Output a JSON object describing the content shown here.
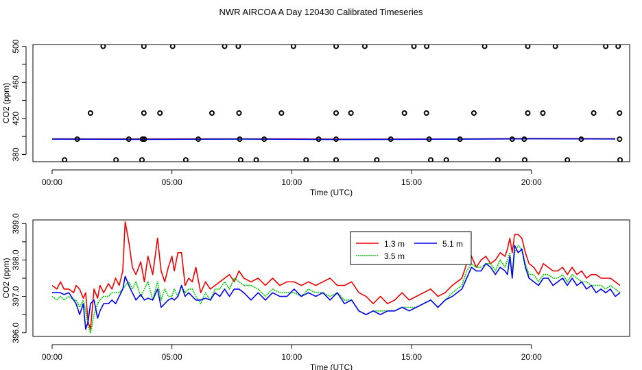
{
  "title": "NWR AIRCOA A  Day 120430  Calibrated Timeseries",
  "chart_data": [
    {
      "type": "scatter",
      "xlabel": "Time (UTC)",
      "ylabel": "CO2 (ppm)",
      "xlim": [
        -0.8,
        24.1
      ],
      "ylim": [
        372,
        502
      ],
      "xticks": [
        0,
        5,
        10,
        15,
        20
      ],
      "xtick_labels": [
        "00:00",
        "05:00",
        "10:00",
        "15:00",
        "20:00"
      ],
      "yticks": [
        380,
        420,
        460,
        500
      ],
      "ytick_labels": [
        "380",
        "420",
        "460",
        "500"
      ],
      "yticks_minor": [
        400,
        440,
        480
      ],
      "points": [
        [
          2.13,
          500
        ],
        [
          3.83,
          500
        ],
        [
          5.03,
          500
        ],
        [
          7.2,
          500
        ],
        [
          7.77,
          500
        ],
        [
          10.07,
          500
        ],
        [
          11.85,
          500
        ],
        [
          13.05,
          500
        ],
        [
          15.1,
          500
        ],
        [
          15.63,
          500
        ],
        [
          18.05,
          500
        ],
        [
          19.85,
          500
        ],
        [
          21.0,
          500
        ],
        [
          23.1,
          500
        ],
        [
          23.62,
          500
        ],
        [
          1.6,
          426
        ],
        [
          3.83,
          426
        ],
        [
          4.5,
          426
        ],
        [
          6.67,
          426
        ],
        [
          7.8,
          426
        ],
        [
          9.57,
          426
        ],
        [
          11.85,
          426
        ],
        [
          12.47,
          426
        ],
        [
          14.7,
          426
        ],
        [
          15.62,
          426
        ],
        [
          17.6,
          426
        ],
        [
          19.85,
          426
        ],
        [
          20.48,
          426
        ],
        [
          22.6,
          426
        ],
        [
          23.68,
          426
        ],
        [
          1.05,
          397
        ],
        [
          3.2,
          397
        ],
        [
          3.77,
          397
        ],
        [
          3.85,
          397
        ],
        [
          6.1,
          397
        ],
        [
          7.83,
          397
        ],
        [
          8.85,
          397
        ],
        [
          11.12,
          397
        ],
        [
          11.85,
          397
        ],
        [
          14.13,
          397
        ],
        [
          15.73,
          397
        ],
        [
          17.02,
          397
        ],
        [
          19.2,
          397
        ],
        [
          19.7,
          397
        ],
        [
          22.08,
          397
        ],
        [
          23.68,
          397
        ],
        [
          0.52,
          374
        ],
        [
          2.67,
          374
        ],
        [
          3.75,
          374
        ],
        [
          5.58,
          374
        ],
        [
          7.87,
          374
        ],
        [
          8.52,
          374
        ],
        [
          10.6,
          374
        ],
        [
          11.85,
          374
        ],
        [
          13.55,
          374
        ],
        [
          15.8,
          374
        ],
        [
          16.45,
          374
        ],
        [
          18.6,
          374
        ],
        [
          19.72,
          374
        ],
        [
          21.5,
          374
        ],
        [
          23.7,
          374
        ]
      ],
      "series": [
        {
          "name": "1.3 m",
          "color": "#ee0000",
          "x": [
            0,
            4,
            8,
            12,
            16,
            20,
            23.5
          ],
          "values": [
            397.4,
            397.3,
            397.5,
            397.0,
            397.2,
            397.8,
            397.6
          ]
        },
        {
          "name": "3.5 m",
          "color": "#00cc00",
          "x": [
            0,
            4,
            8,
            12,
            16,
            20,
            23.5
          ],
          "values": [
            397.1,
            396.9,
            397.2,
            396.7,
            396.9,
            397.5,
            397.3
          ]
        },
        {
          "name": "5.1 m",
          "color": "#0000ee",
          "x": [
            0,
            4,
            8,
            12,
            16,
            20,
            23.5
          ],
          "values": [
            397.0,
            396.8,
            397.1,
            396.6,
            396.9,
            397.4,
            397.2
          ]
        }
      ]
    },
    {
      "type": "line",
      "xlabel": "Time (UTC)",
      "ylabel": "CO2 (ppm)",
      "xlim": [
        -0.8,
        24.1
      ],
      "ylim": [
        395.9,
        399.1
      ],
      "xticks": [
        0,
        5,
        10,
        15,
        20
      ],
      "xtick_labels": [
        "00:00",
        "05:00",
        "10:00",
        "15:00",
        "20:00"
      ],
      "yticks": [
        396.0,
        397.0,
        398.0,
        399.0
      ],
      "ytick_labels": [
        "396.0",
        "397.0",
        "398.0",
        "399.0"
      ],
      "yticks_minor": [
        396.5,
        397.5,
        398.5
      ],
      "legend": "top-center",
      "x": [
        0,
        0.2,
        0.35,
        0.5,
        0.7,
        0.9,
        1.0,
        1.15,
        1.3,
        1.4,
        1.5,
        1.6,
        1.75,
        1.9,
        2.0,
        2.15,
        2.35,
        2.5,
        2.65,
        2.8,
        2.95,
        3.05,
        3.2,
        3.35,
        3.5,
        3.7,
        3.85,
        4.0,
        4.2,
        4.4,
        4.55,
        4.7,
        4.85,
        5.0,
        5.1,
        5.25,
        5.4,
        5.55,
        5.7,
        5.85,
        6.0,
        6.2,
        6.4,
        6.6,
        6.8,
        7.0,
        7.2,
        7.4,
        7.6,
        7.8,
        8.0,
        8.3,
        8.6,
        8.9,
        9.2,
        9.5,
        9.8,
        10.1,
        10.4,
        10.7,
        11.0,
        11.3,
        11.6,
        11.9,
        12.2,
        12.5,
        12.8,
        13.1,
        13.4,
        13.7,
        14.0,
        14.3,
        14.6,
        14.9,
        15.2,
        15.5,
        15.8,
        16.1,
        16.4,
        16.7,
        16.9,
        17.1,
        17.3,
        17.5,
        17.7,
        17.9,
        18.1,
        18.3,
        18.5,
        18.7,
        18.9,
        19.0,
        19.1,
        19.2,
        19.3,
        19.45,
        19.6,
        19.75,
        19.9,
        20.1,
        20.3,
        20.5,
        20.7,
        20.9,
        21.1,
        21.3,
        21.5,
        21.7,
        21.9,
        22.1,
        22.3,
        22.5,
        22.7,
        22.9,
        23.1,
        23.3,
        23.5,
        23.7
      ],
      "series": [
        {
          "name": "1.3 m",
          "color": "#ee0000",
          "values": [
            397.3,
            397.2,
            397.4,
            397.2,
            397.2,
            397.1,
            397.3,
            397.2,
            396.95,
            397.1,
            396.3,
            396.1,
            397.2,
            396.95,
            397.3,
            397.1,
            397.35,
            397.2,
            397.5,
            397.3,
            397.7,
            399.05,
            398.5,
            397.8,
            397.6,
            397.95,
            397.4,
            398.1,
            397.6,
            398.6,
            397.7,
            397.4,
            397.8,
            398.1,
            397.7,
            398.2,
            398.2,
            397.3,
            397.5,
            397.4,
            397.8,
            397.1,
            397.4,
            397.2,
            397.3,
            397.4,
            397.5,
            397.6,
            397.4,
            397.7,
            397.5,
            397.4,
            397.5,
            397.3,
            397.5,
            397.3,
            397.4,
            397.4,
            397.3,
            397.4,
            397.3,
            397.4,
            397.5,
            397.3,
            397.3,
            397.4,
            397.1,
            397.0,
            396.8,
            397.0,
            396.8,
            396.9,
            397.1,
            396.9,
            397.0,
            397.1,
            397.2,
            397.0,
            397.1,
            397.3,
            397.4,
            397.5,
            397.9,
            398.1,
            397.8,
            398.0,
            398.1,
            397.9,
            398.0,
            398.2,
            398.1,
            398.3,
            398.6,
            398.2,
            398.7,
            398.7,
            398.6,
            398.2,
            397.9,
            397.8,
            397.6,
            397.9,
            397.8,
            397.7,
            397.7,
            397.8,
            397.6,
            397.8,
            397.6,
            397.7,
            397.5,
            397.6,
            397.6,
            397.5,
            397.5,
            397.5,
            397.4,
            397.3
          ]
        },
        {
          "name": "3.5 m",
          "color": "#00cc00",
          "values": [
            397.0,
            396.9,
            397.0,
            396.9,
            397.0,
            396.9,
            396.9,
            396.7,
            396.9,
            396.6,
            396.2,
            396.0,
            396.5,
            396.8,
            396.9,
            397.0,
            397.0,
            397.1,
            397.1,
            397.1,
            397.2,
            397.3,
            397.4,
            397.2,
            397.4,
            397.0,
            397.2,
            397.4,
            396.9,
            397.4,
            396.9,
            397.2,
            397.0,
            397.0,
            397.2,
            397.0,
            397.3,
            397.1,
            397.2,
            397.2,
            397.0,
            396.8,
            397.1,
            396.9,
            397.2,
            397.2,
            397.4,
            397.2,
            397.5,
            397.4,
            397.3,
            397.3,
            397.2,
            397.0,
            397.2,
            397.1,
            397.1,
            397.1,
            397.0,
            397.2,
            397.1,
            397.1,
            397.0,
            397.1,
            396.9,
            396.9,
            396.6,
            396.5,
            396.6,
            396.6,
            396.6,
            396.6,
            396.7,
            396.7,
            396.7,
            396.8,
            396.9,
            396.7,
            396.9,
            397.1,
            397.2,
            397.3,
            397.7,
            397.9,
            397.8,
            397.8,
            397.9,
            397.9,
            397.7,
            398.0,
            397.8,
            398.0,
            398.2,
            397.6,
            398.2,
            398.4,
            398.3,
            397.9,
            397.6,
            397.6,
            397.4,
            397.6,
            397.6,
            397.5,
            397.5,
            397.6,
            397.4,
            397.6,
            397.5,
            397.4,
            397.4,
            397.3,
            397.3,
            397.3,
            397.2,
            397.3,
            397.2,
            397.1
          ]
        },
        {
          "name": "5.1 m",
          "color": "#0000ee",
          "values": [
            397.1,
            397.1,
            397.1,
            397.05,
            397.1,
            396.9,
            396.8,
            396.5,
            396.8,
            396.1,
            396.3,
            396.8,
            396.9,
            396.4,
            396.6,
            396.8,
            396.8,
            396.9,
            396.8,
            397.0,
            397.2,
            397.55,
            397.3,
            397.1,
            396.9,
            397.05,
            396.9,
            396.95,
            396.9,
            397.2,
            396.7,
            396.8,
            396.9,
            396.95,
            396.9,
            397.0,
            397.3,
            397.0,
            397.1,
            397.0,
            396.9,
            396.9,
            396.95,
            396.9,
            397.1,
            397.0,
            397.2,
            397.0,
            397.2,
            397.2,
            397.1,
            396.9,
            397.1,
            396.9,
            397.1,
            397.0,
            397.0,
            397.2,
            397.0,
            397.1,
            397.0,
            397.1,
            396.9,
            397.1,
            396.8,
            396.9,
            396.6,
            396.5,
            396.6,
            396.5,
            396.6,
            396.6,
            396.7,
            396.6,
            396.7,
            396.8,
            396.9,
            396.7,
            396.9,
            397.0,
            397.1,
            397.2,
            397.5,
            397.8,
            397.7,
            397.7,
            397.9,
            397.8,
            397.6,
            397.8,
            397.7,
            397.6,
            398.1,
            397.5,
            398.4,
            398.2,
            398.3,
            397.8,
            397.5,
            397.4,
            397.3,
            397.5,
            397.5,
            397.3,
            397.4,
            397.5,
            397.3,
            397.5,
            397.3,
            397.4,
            397.2,
            397.3,
            397.1,
            397.2,
            397.1,
            397.2,
            397.0,
            397.1
          ]
        }
      ]
    }
  ]
}
